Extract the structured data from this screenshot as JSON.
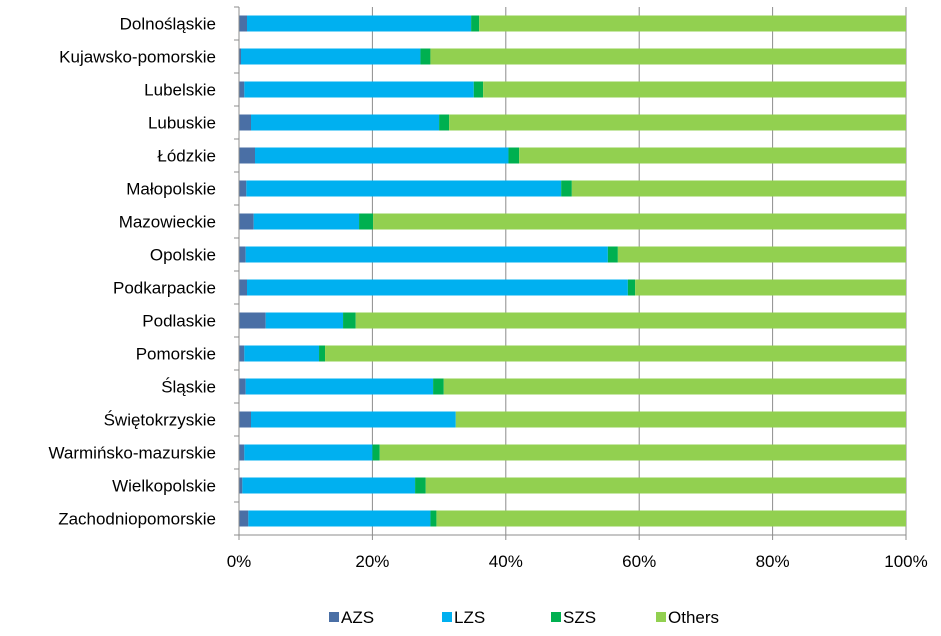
{
  "chart_data": {
    "type": "bar",
    "orientation": "horizontal",
    "stacked": "percent",
    "categories": [
      "Dolnośląskie",
      "Kujawsko-pomorskie",
      "Lubelskie",
      "Lubuskie",
      "Łódzkie",
      "Małopolskie",
      "Mazowieckie",
      "Opolskie",
      "Podkarpackie",
      "Podlaskie",
      "Pomorskie",
      "Śląskie",
      "Świętokrzyskie",
      "Warmińsko-mazurskie",
      "Wielkopolskie",
      "Zachodniopomorskie"
    ],
    "series": [
      {
        "name": "AZS",
        "color": "#4a6fa5",
        "values": [
          1.2,
          0.3,
          0.8,
          1.8,
          2.4,
          1.1,
          2.2,
          1.0,
          1.2,
          4.0,
          0.8,
          1.0,
          1.8,
          0.8,
          0.5,
          1.4
        ]
      },
      {
        "name": "LZS",
        "color": "#00b0f0",
        "values": [
          33.6,
          26.9,
          34.4,
          28.2,
          38.0,
          47.2,
          15.8,
          54.3,
          57.1,
          11.6,
          11.2,
          28.1,
          30.7,
          19.2,
          25.9,
          27.3
        ]
      },
      {
        "name": "SZS",
        "color": "#00b050",
        "values": [
          1.2,
          1.5,
          1.4,
          1.5,
          1.6,
          1.6,
          2.1,
          1.5,
          1.1,
          1.9,
          0.9,
          1.6,
          0.0,
          1.1,
          1.6,
          0.9
        ]
      },
      {
        "name": "Others",
        "color": "#92d050",
        "values": [
          64.0,
          71.3,
          63.4,
          68.5,
          58.0,
          50.1,
          79.9,
          43.2,
          40.6,
          82.5,
          87.1,
          69.3,
          67.5,
          78.9,
          72.0,
          70.4
        ]
      }
    ],
    "x_ticks": [
      "0%",
      "20%",
      "40%",
      "60%",
      "80%",
      "100%"
    ],
    "xlim": [
      0,
      100
    ],
    "grid": true,
    "legend_position": "bottom"
  }
}
